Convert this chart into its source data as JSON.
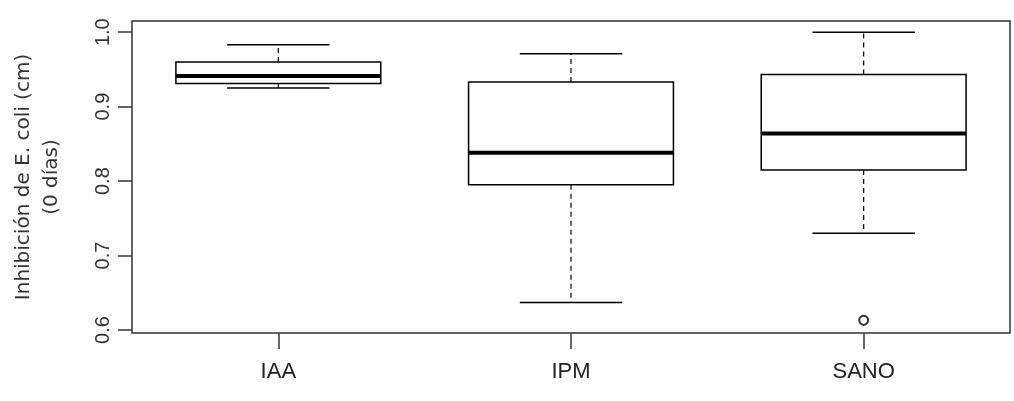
{
  "chart_data": {
    "type": "box",
    "ylabel": "Inhibición de E. coli (cm)\n(0 días)",
    "categories": [
      "IAA",
      "IPM",
      "SANO"
    ],
    "ylim": [
      0.596,
      1.015
    ],
    "yticks": [
      0.6,
      0.7,
      0.8,
      0.9,
      {
        "value": 1,
        "label": "1.0"
      }
    ],
    "grid": false,
    "series": [
      {
        "color": "#000000",
        "boxes": [
          {
            "low": 0.925,
            "q1": 0.931,
            "median": 0.941,
            "q3": 0.96,
            "high": 0.983
          },
          {
            "low": 0.637,
            "q1": 0.795,
            "median": 0.838,
            "q3": 0.933,
            "high": 0.971
          },
          {
            "low": 0.73,
            "q1": 0.815,
            "median": 0.864,
            "q3": 0.943,
            "high": 1.0,
            "outliers": [
              0.613
            ]
          }
        ]
      }
    ]
  }
}
